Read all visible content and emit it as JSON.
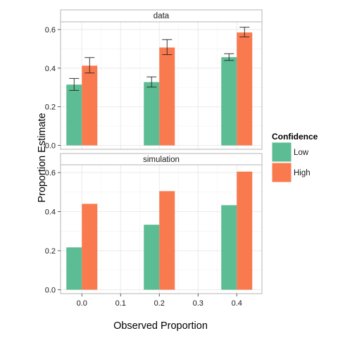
{
  "chart_data": {
    "type": "bar",
    "xlabel": "Observed Proportion",
    "ylabel": "Proportion Estimate",
    "x_ticks": [
      0.0,
      0.1,
      0.2,
      0.3,
      0.4
    ],
    "x_tick_labels": [
      "0.0",
      "0.1",
      "0.2",
      "0.3",
      "0.4"
    ],
    "xlim": [
      -0.055,
      0.465
    ],
    "y_ticks": [
      0.0,
      0.2,
      0.4,
      0.6
    ],
    "y_tick_labels": [
      "0.0",
      "0.2",
      "0.4",
      "0.6"
    ],
    "ylim": [
      -0.02,
      0.64
    ],
    "grid": true,
    "legend": {
      "title": "Confidence",
      "placement": "right",
      "entries": [
        {
          "name": "Low",
          "color": "#5cbc93"
        },
        {
          "name": "High",
          "color": "#fa7a50"
        }
      ]
    },
    "panels": [
      {
        "title": "data",
        "series": [
          {
            "name": "Low",
            "x": [
              0.0,
              0.2,
              0.4
            ],
            "values": [
              0.315,
              0.328,
              0.457
            ],
            "err_low": [
              0.285,
              0.302,
              0.44
            ],
            "err_high": [
              0.347,
              0.355,
              0.475
            ]
          },
          {
            "name": "High",
            "x": [
              0.0,
              0.2,
              0.4
            ],
            "values": [
              0.413,
              0.507,
              0.585
            ],
            "err_low": [
              0.375,
              0.47,
              0.562
            ],
            "err_high": [
              0.455,
              0.548,
              0.612
            ]
          }
        ]
      },
      {
        "title": "simulation",
        "series": [
          {
            "name": "Low",
            "x": [
              0.0,
              0.2,
              0.4
            ],
            "values": [
              0.217,
              0.333,
              0.433
            ]
          },
          {
            "name": "High",
            "x": [
              0.0,
              0.2,
              0.4
            ],
            "values": [
              0.44,
              0.505,
              0.605
            ]
          }
        ]
      }
    ]
  }
}
